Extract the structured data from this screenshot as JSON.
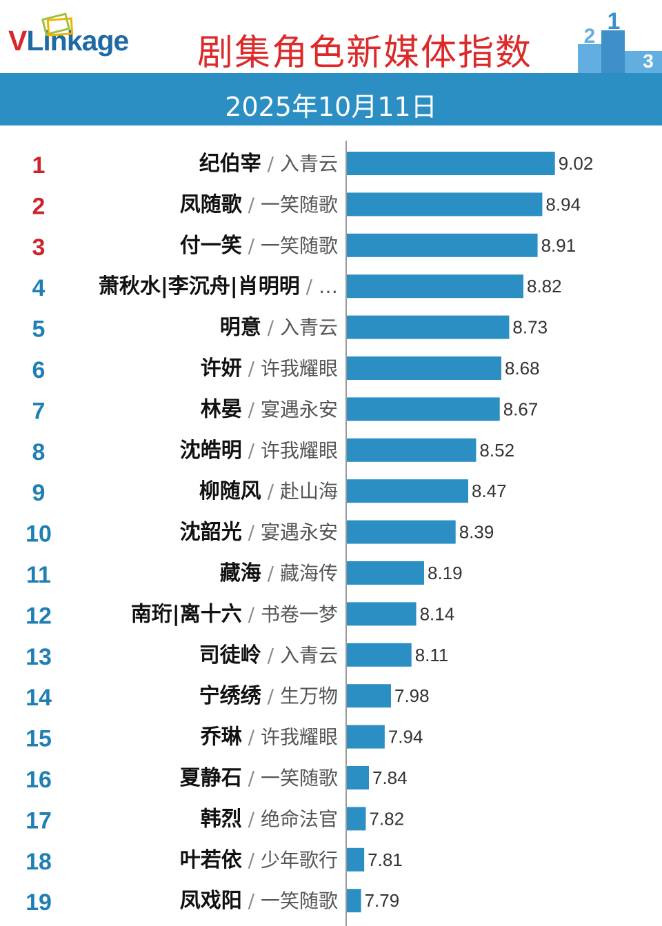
{
  "header": {
    "logo_v": "V",
    "logo_rest": "Linkage",
    "title": "剧集角色新媒体指数"
  },
  "podium": {
    "first": "1",
    "second": "2",
    "third": "3"
  },
  "date_band": {
    "date": "2025年10月11日"
  },
  "colors": {
    "bar": "#2b8fc3",
    "top_rank": "#cc2229",
    "rank": "#1f7fb5",
    "band": "#2b8fc3",
    "title": "#dc2a2a"
  },
  "chart_data": {
    "type": "bar",
    "orientation": "horizontal",
    "title": "剧集角色新媒体指数",
    "subtitle": "2025年10月11日",
    "separator": "/",
    "ranks": [
      1,
      2,
      3,
      4,
      5,
      6,
      7,
      8,
      9,
      10,
      11,
      12,
      13,
      14,
      15,
      16,
      17,
      18,
      19
    ],
    "characters": [
      "纪伯宰",
      "凤随歌",
      "付一笑",
      "萧秋水|李沉舟|肖明明",
      "明意",
      "许妍",
      "林晏",
      "沈皓明",
      "柳随风",
      "沈韶光",
      "藏海",
      "南珩|离十六",
      "司徒岭",
      "宁绣绣",
      "乔琳",
      "夏静石",
      "韩烈",
      "叶若依",
      "凤戏阳"
    ],
    "shows": [
      "入青云",
      "一笑随歌",
      "一笑随歌",
      "…",
      "入青云",
      "许我耀眼",
      "宴遇永安",
      "许我耀眼",
      "赴山海",
      "宴遇永安",
      "藏海传",
      "书卷一梦",
      "入青云",
      "生万物",
      "许我耀眼",
      "一笑随歌",
      "绝命法官",
      "少年歌行",
      "一笑随歌"
    ],
    "values": [
      9.02,
      8.94,
      8.91,
      8.82,
      8.73,
      8.68,
      8.67,
      8.52,
      8.47,
      8.39,
      8.19,
      8.14,
      8.11,
      7.98,
      7.94,
      7.84,
      7.82,
      7.81,
      7.79
    ],
    "value_labels": [
      "9.02",
      "8.94",
      "8.91",
      "8.82",
      "8.73",
      "8.68",
      "8.67",
      "8.52",
      "8.47",
      "8.39",
      "8.19",
      "8.14",
      "8.11",
      "7.98",
      "7.94",
      "7.84",
      "7.82",
      "7.81",
      "7.79"
    ],
    "xlim": [
      7.7,
      9.1
    ],
    "grid": false,
    "legend": "none"
  }
}
